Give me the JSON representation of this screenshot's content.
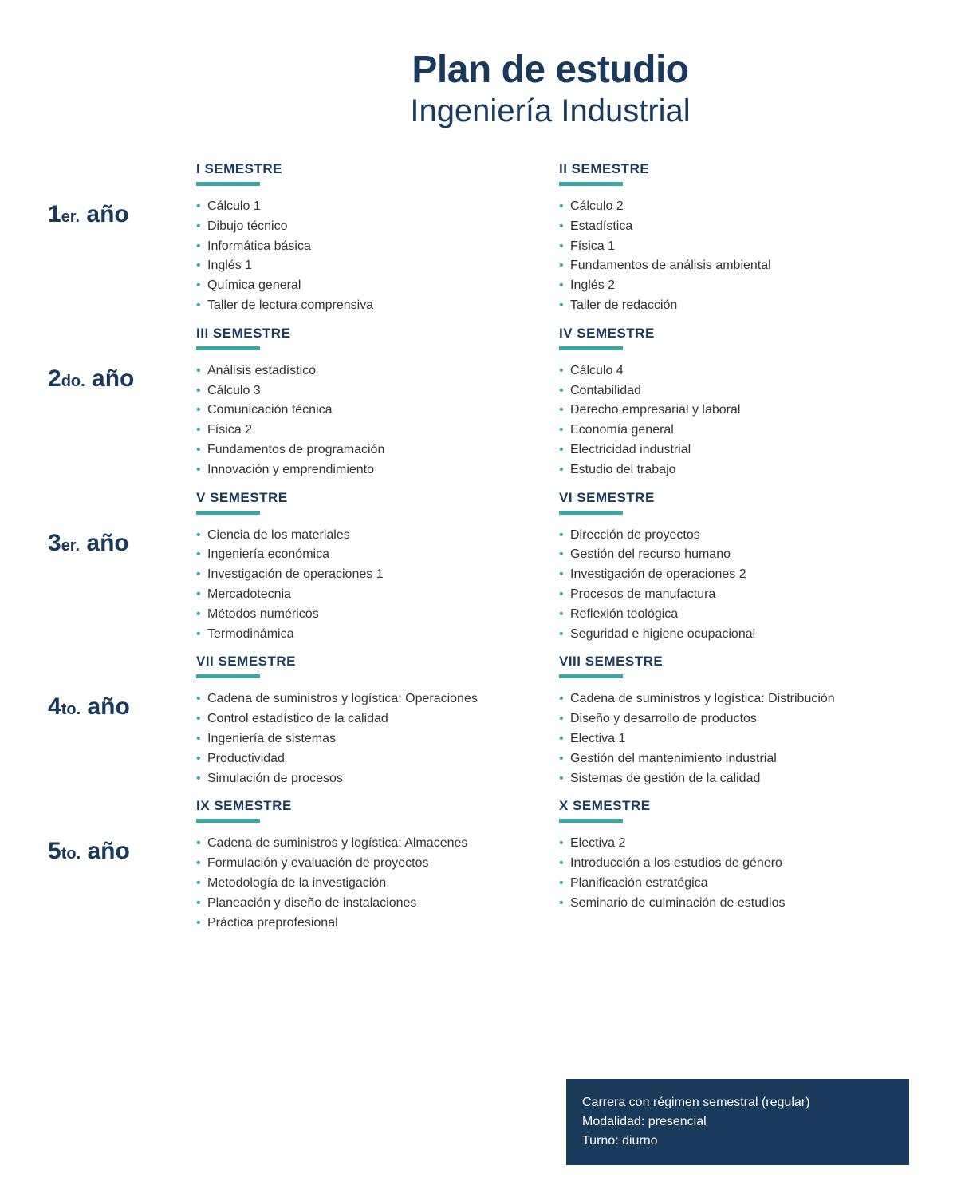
{
  "colors": {
    "navy": "#1a3a5c",
    "teal": "#3aa6a6",
    "text": "#333333",
    "white": "#ffffff"
  },
  "header": {
    "title": "Plan de estudio",
    "subtitle": "Ingeniería Industrial"
  },
  "years": [
    {
      "num": "1",
      "suffix": "er.",
      "word": "año",
      "semesters": [
        {
          "title": "I SEMESTRE",
          "courses": [
            "Cálculo 1",
            "Dibujo técnico",
            "Informática básica",
            "Inglés 1",
            "Química general",
            "Taller de lectura comprensiva"
          ]
        },
        {
          "title": "II SEMESTRE",
          "courses": [
            "Cálculo 2",
            "Estadística",
            "Física 1",
            "Fundamentos de análisis ambiental",
            "Inglés 2",
            "Taller de redacción"
          ]
        }
      ]
    },
    {
      "num": "2",
      "suffix": "do.",
      "word": "año",
      "semesters": [
        {
          "title": "III SEMESTRE",
          "courses": [
            "Análisis estadístico",
            "Cálculo 3",
            "Comunicación técnica",
            "Física 2",
            "Fundamentos de programación",
            "Innovación y emprendimiento"
          ]
        },
        {
          "title": "IV SEMESTRE",
          "courses": [
            "Cálculo 4",
            "Contabilidad",
            "Derecho empresarial y laboral",
            "Economía general",
            "Electricidad industrial",
            "Estudio del trabajo"
          ]
        }
      ]
    },
    {
      "num": "3",
      "suffix": "er.",
      "word": "año",
      "semesters": [
        {
          "title": "V SEMESTRE",
          "courses": [
            "Ciencia de los materiales",
            "Ingeniería económica",
            "Investigación de operaciones 1",
            "Mercadotecnia",
            "Métodos numéricos",
            "Termodinámica"
          ]
        },
        {
          "title": "VI SEMESTRE",
          "courses": [
            "Dirección de proyectos",
            "Gestión del recurso humano",
            "Investigación de operaciones 2",
            "Procesos de manufactura",
            "Reflexión teológica",
            "Seguridad e higiene ocupacional"
          ]
        }
      ]
    },
    {
      "num": "4",
      "suffix": "to.",
      "word": "año",
      "semesters": [
        {
          "title": "VII SEMESTRE",
          "courses": [
            "Cadena de suministros y logística: Operaciones",
            "Control estadístico de la calidad",
            "Ingeniería de sistemas",
            "Productividad",
            "Simulación de procesos"
          ]
        },
        {
          "title": "VIII SEMESTRE",
          "courses": [
            "Cadena de suministros y logística: Distribución",
            "Diseño y desarrollo de productos",
            "Electiva 1",
            "Gestión del mantenimiento industrial",
            "Sistemas de gestión de la calidad"
          ]
        }
      ]
    },
    {
      "num": "5",
      "suffix": "to.",
      "word": "año",
      "semesters": [
        {
          "title": "IX SEMESTRE",
          "courses": [
            "Cadena de suministros y logística: Almacenes",
            "Formulación y evaluación de proyectos",
            "Metodología de la investigación",
            "Planeación y diseño de instalaciones",
            "Práctica preprofesional"
          ]
        },
        {
          "title": "X SEMESTRE",
          "courses": [
            "Electiva 2",
            "Introducción a los estudios de género",
            "Planificación estratégica",
            "Seminario de culminación de estudios"
          ]
        }
      ]
    }
  ],
  "footer": {
    "line1": "Carrera con régimen semestral (regular)",
    "line2": "Modalidad: presencial",
    "line3": "Turno: diurno"
  }
}
